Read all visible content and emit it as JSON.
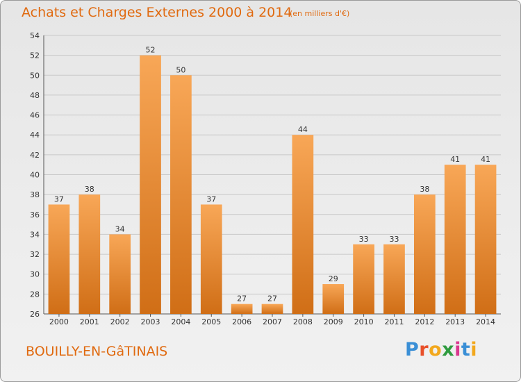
{
  "header": {
    "title": "Achats et Charges Externes 2000 à 2014",
    "subtitle": "(en milliers d'€)"
  },
  "footer": {
    "commune": "BOUILLY-EN-GâTINAIS",
    "logo_letters": [
      "P",
      "r",
      "o",
      "x",
      "i",
      "t",
      "i"
    ],
    "logo_colors": [
      "#3a8fd6",
      "#e8502a",
      "#f2a81d",
      "#2f9b3f",
      "#d9398f",
      "#3a8fd6",
      "#f2a81d"
    ]
  },
  "chart_data": {
    "type": "bar",
    "title": "Achats et Charges Externes 2000 à 2014",
    "subtitle": "(en milliers d'€)",
    "categories": [
      "2000",
      "2001",
      "2002",
      "2003",
      "2004",
      "2005",
      "2006",
      "2007",
      "2008",
      "2009",
      "2010",
      "2011",
      "2012",
      "2013",
      "2014"
    ],
    "values": [
      37,
      38,
      34,
      52,
      50,
      37,
      27,
      27,
      44,
      29,
      33,
      33,
      38,
      41,
      41
    ],
    "ylim": [
      26,
      54
    ],
    "yticks": [
      26,
      28,
      30,
      32,
      34,
      36,
      38,
      40,
      42,
      44,
      46,
      48,
      50,
      52,
      54
    ],
    "grid": true,
    "bar_color_top": "#f8a757",
    "bar_color_bottom": "#d06e16",
    "xlabel": "",
    "ylabel": ""
  }
}
